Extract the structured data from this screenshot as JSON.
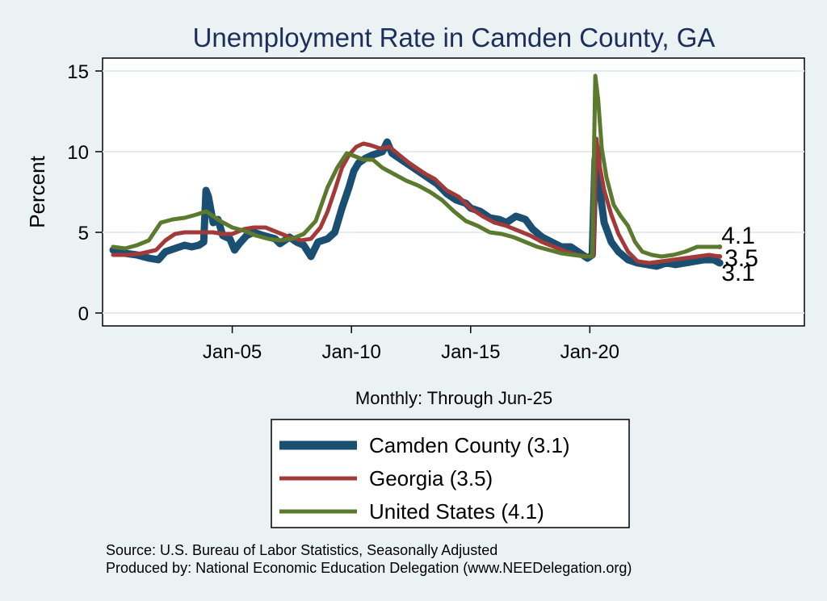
{
  "chart_data": {
    "type": "line",
    "title": "Unemployment Rate in Camden  County, GA",
    "ylabel": "Percent",
    "xlabel": "Monthly: Through Jun-25",
    "ylim": [
      0,
      15
    ],
    "yticks": [
      0,
      5,
      10,
      15
    ],
    "xlim": [
      2000.0,
      2029.0
    ],
    "xticks": [
      {
        "value": 2005.0,
        "label": "Jan-05"
      },
      {
        "value": 2010.0,
        "label": "Jan-10"
      },
      {
        "value": 2015.0,
        "label": "Jan-15"
      },
      {
        "value": 2020.0,
        "label": "Jan-20"
      }
    ],
    "grid": true,
    "legend_position": "bottom",
    "series": [
      {
        "name": "Camden  County (3.1)",
        "color": "#1b4f72",
        "end_label": "3.1",
        "points": [
          [
            2000.0,
            3.9
          ],
          [
            2000.5,
            3.7
          ],
          [
            2001.0,
            3.6
          ],
          [
            2001.5,
            3.4
          ],
          [
            2001.9,
            3.3
          ],
          [
            2002.2,
            3.8
          ],
          [
            2002.6,
            4.0
          ],
          [
            2003.0,
            4.2
          ],
          [
            2003.3,
            4.1
          ],
          [
            2003.6,
            4.2
          ],
          [
            2003.8,
            4.4
          ],
          [
            2003.9,
            7.6
          ],
          [
            2004.0,
            7.2
          ],
          [
            2004.2,
            5.6
          ],
          [
            2004.4,
            5.8
          ],
          [
            2004.6,
            4.8
          ],
          [
            2004.9,
            4.6
          ],
          [
            2005.1,
            3.9
          ],
          [
            2005.3,
            4.3
          ],
          [
            2005.6,
            4.8
          ],
          [
            2005.9,
            5.0
          ],
          [
            2006.3,
            4.8
          ],
          [
            2006.8,
            4.6
          ],
          [
            2007.0,
            4.3
          ],
          [
            2007.4,
            4.7
          ],
          [
            2007.7,
            4.4
          ],
          [
            2008.0,
            4.2
          ],
          [
            2008.3,
            3.5
          ],
          [
            2008.6,
            4.4
          ],
          [
            2009.0,
            4.6
          ],
          [
            2009.3,
            5.0
          ],
          [
            2009.6,
            6.5
          ],
          [
            2009.9,
            7.8
          ],
          [
            2010.1,
            8.8
          ],
          [
            2010.3,
            9.3
          ],
          [
            2010.6,
            9.6
          ],
          [
            2010.9,
            9.8
          ],
          [
            2011.1,
            9.9
          ],
          [
            2011.3,
            10.0
          ],
          [
            2011.5,
            10.6
          ],
          [
            2011.7,
            9.9
          ],
          [
            2012.0,
            9.6
          ],
          [
            2012.4,
            9.2
          ],
          [
            2012.8,
            8.8
          ],
          [
            2013.2,
            8.4
          ],
          [
            2013.6,
            8.0
          ],
          [
            2014.0,
            7.4
          ],
          [
            2014.4,
            7.0
          ],
          [
            2014.8,
            6.8
          ],
          [
            2015.0,
            6.5
          ],
          [
            2015.4,
            6.3
          ],
          [
            2015.8,
            5.9
          ],
          [
            2016.2,
            5.8
          ],
          [
            2016.5,
            5.6
          ],
          [
            2016.9,
            6.0
          ],
          [
            2017.3,
            5.8
          ],
          [
            2017.6,
            5.2
          ],
          [
            2018.0,
            4.7
          ],
          [
            2018.4,
            4.4
          ],
          [
            2018.8,
            4.1
          ],
          [
            2019.2,
            4.1
          ],
          [
            2019.5,
            3.8
          ],
          [
            2019.9,
            3.4
          ],
          [
            2020.1,
            3.6
          ],
          [
            2020.22,
            9.5
          ],
          [
            2020.3,
            10.2
          ],
          [
            2020.4,
            7.8
          ],
          [
            2020.6,
            5.6
          ],
          [
            2020.9,
            4.4
          ],
          [
            2021.2,
            3.8
          ],
          [
            2021.6,
            3.3
          ],
          [
            2022.0,
            3.1
          ],
          [
            2022.4,
            3.0
          ],
          [
            2022.8,
            2.9
          ],
          [
            2023.2,
            3.1
          ],
          [
            2023.6,
            3.0
          ],
          [
            2024.0,
            3.1
          ],
          [
            2024.4,
            3.2
          ],
          [
            2024.8,
            3.3
          ],
          [
            2025.2,
            3.3
          ],
          [
            2025.45,
            3.1
          ]
        ]
      },
      {
        "name": "Georgia (3.5)",
        "color": "#a33a3a",
        "end_label": "3.5",
        "points": [
          [
            2000.0,
            3.6
          ],
          [
            2000.6,
            3.6
          ],
          [
            2001.2,
            3.7
          ],
          [
            2001.8,
            3.9
          ],
          [
            2002.2,
            4.5
          ],
          [
            2002.6,
            4.9
          ],
          [
            2003.0,
            5.0
          ],
          [
            2003.6,
            5.0
          ],
          [
            2004.2,
            5.0
          ],
          [
            2004.6,
            4.9
          ],
          [
            2005.0,
            4.9
          ],
          [
            2005.5,
            5.2
          ],
          [
            2005.9,
            5.3
          ],
          [
            2006.4,
            5.3
          ],
          [
            2006.9,
            5.0
          ],
          [
            2007.4,
            4.7
          ],
          [
            2007.9,
            4.5
          ],
          [
            2008.3,
            4.6
          ],
          [
            2008.7,
            5.3
          ],
          [
            2009.0,
            6.3
          ],
          [
            2009.3,
            7.6
          ],
          [
            2009.6,
            9.0
          ],
          [
            2009.9,
            9.8
          ],
          [
            2010.2,
            10.3
          ],
          [
            2010.5,
            10.5
          ],
          [
            2010.8,
            10.4
          ],
          [
            2011.2,
            10.2
          ],
          [
            2011.6,
            10.3
          ],
          [
            2012.0,
            9.8
          ],
          [
            2012.5,
            9.2
          ],
          [
            2013.0,
            8.7
          ],
          [
            2013.5,
            8.3
          ],
          [
            2014.0,
            7.6
          ],
          [
            2014.5,
            7.2
          ],
          [
            2015.0,
            6.5
          ],
          [
            2015.5,
            6.0
          ],
          [
            2016.0,
            5.6
          ],
          [
            2016.5,
            5.4
          ],
          [
            2017.0,
            5.1
          ],
          [
            2017.5,
            4.8
          ],
          [
            2018.0,
            4.4
          ],
          [
            2018.5,
            4.1
          ],
          [
            2019.0,
            3.8
          ],
          [
            2019.5,
            3.6
          ],
          [
            2020.0,
            3.5
          ],
          [
            2020.15,
            3.6
          ],
          [
            2020.28,
            10.8
          ],
          [
            2020.4,
            9.2
          ],
          [
            2020.6,
            7.6
          ],
          [
            2020.9,
            6.1
          ],
          [
            2021.2,
            4.9
          ],
          [
            2021.6,
            3.8
          ],
          [
            2022.0,
            3.2
          ],
          [
            2022.5,
            3.1
          ],
          [
            2023.0,
            3.2
          ],
          [
            2023.5,
            3.3
          ],
          [
            2024.0,
            3.4
          ],
          [
            2024.5,
            3.5
          ],
          [
            2025.0,
            3.6
          ],
          [
            2025.45,
            3.5
          ]
        ]
      },
      {
        "name": "United States (4.1)",
        "color": "#5b7a2e",
        "end_label": "4.1",
        "points": [
          [
            2000.0,
            4.1
          ],
          [
            2000.5,
            4.0
          ],
          [
            2001.0,
            4.2
          ],
          [
            2001.5,
            4.5
          ],
          [
            2002.0,
            5.6
          ],
          [
            2002.5,
            5.8
          ],
          [
            2003.0,
            5.9
          ],
          [
            2003.5,
            6.1
          ],
          [
            2003.9,
            6.3
          ],
          [
            2004.5,
            5.7
          ],
          [
            2005.0,
            5.3
          ],
          [
            2005.5,
            5.1
          ],
          [
            2006.0,
            4.8
          ],
          [
            2006.5,
            4.6
          ],
          [
            2007.0,
            4.5
          ],
          [
            2007.5,
            4.6
          ],
          [
            2008.0,
            4.9
          ],
          [
            2008.5,
            5.7
          ],
          [
            2009.0,
            7.8
          ],
          [
            2009.4,
            9.0
          ],
          [
            2009.8,
            9.9
          ],
          [
            2010.0,
            9.8
          ],
          [
            2010.5,
            9.5
          ],
          [
            2010.9,
            9.5
          ],
          [
            2011.3,
            9.0
          ],
          [
            2011.8,
            8.6
          ],
          [
            2012.3,
            8.2
          ],
          [
            2012.8,
            7.9
          ],
          [
            2013.3,
            7.5
          ],
          [
            2013.8,
            7.0
          ],
          [
            2014.3,
            6.3
          ],
          [
            2014.8,
            5.7
          ],
          [
            2015.3,
            5.4
          ],
          [
            2015.8,
            5.0
          ],
          [
            2016.3,
            4.9
          ],
          [
            2016.8,
            4.7
          ],
          [
            2017.3,
            4.4
          ],
          [
            2017.8,
            4.1
          ],
          [
            2018.3,
            3.9
          ],
          [
            2018.8,
            3.7
          ],
          [
            2019.3,
            3.6
          ],
          [
            2019.8,
            3.5
          ],
          [
            2020.1,
            3.5
          ],
          [
            2020.23,
            14.7
          ],
          [
            2020.35,
            13.2
          ],
          [
            2020.5,
            10.2
          ],
          [
            2020.7,
            8.4
          ],
          [
            2021.0,
            6.7
          ],
          [
            2021.3,
            6.0
          ],
          [
            2021.6,
            5.4
          ],
          [
            2021.9,
            4.4
          ],
          [
            2022.2,
            3.8
          ],
          [
            2022.6,
            3.6
          ],
          [
            2023.0,
            3.5
          ],
          [
            2023.5,
            3.6
          ],
          [
            2024.0,
            3.8
          ],
          [
            2024.5,
            4.1
          ],
          [
            2025.0,
            4.1
          ],
          [
            2025.45,
            4.1
          ]
        ]
      }
    ],
    "source_lines": [
      "Source: U.S. Bureau of Labor Statistics, Seasonally Adjusted",
      "Produced by: National Economic Education Delegation (www.NEEDelegation.org)"
    ]
  }
}
